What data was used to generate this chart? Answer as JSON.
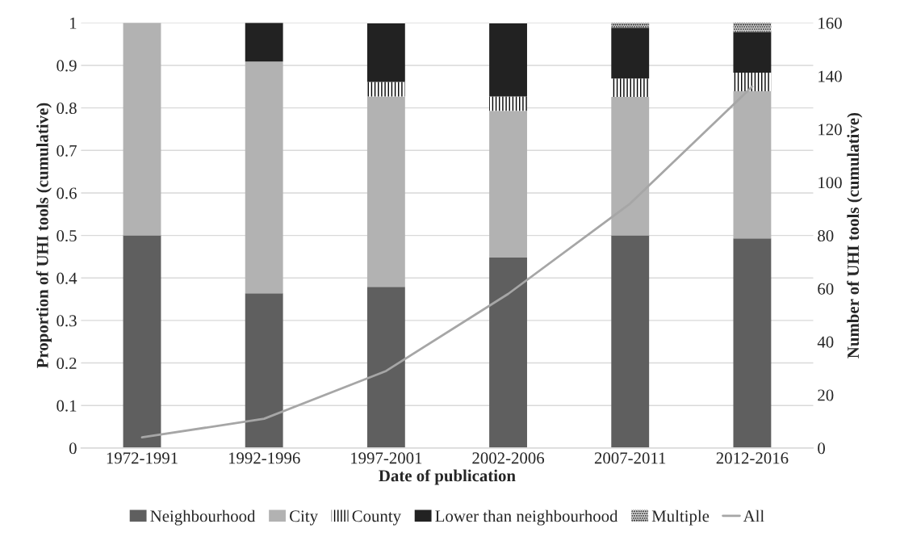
{
  "chart_data": {
    "type": "bar",
    "stacked": true,
    "categories": [
      "1972-1991",
      "1992-1996",
      "1997-2001",
      "2002-2006",
      "2007-2011",
      "2012-2016"
    ],
    "xlabel": "Date of publication",
    "ylabel": "Proportion of UHI tools (cumulative)",
    "y2label": "Number of UHI tools (cumulative)",
    "series": [
      {
        "name": "Neighbourhood",
        "color": "#5f5f5f",
        "values": [
          0.5,
          0.364,
          0.379,
          0.448,
          0.5,
          0.493
        ]
      },
      {
        "name": "City",
        "color": "#b2b2b2",
        "values": [
          0.5,
          0.545,
          0.448,
          0.345,
          0.326,
          0.346
        ]
      },
      {
        "name": "County",
        "color": "#ffffff",
        "values": [
          0,
          0,
          0.034,
          0.034,
          0.043,
          0.044
        ]
      },
      {
        "name": "Lower than neighbourhood",
        "color": "#222222",
        "values": [
          0,
          0.091,
          0.138,
          0.172,
          0.12,
          0.096
        ]
      },
      {
        "name": "Multiple",
        "color": "#d9d9d9",
        "values": [
          0,
          0,
          0,
          0,
          0.011,
          0.022
        ]
      },
      {
        "name": "All",
        "type": "line",
        "axis": "y2",
        "color": "#a6a6a6",
        "values": [
          4,
          11,
          29,
          58,
          92,
          136
        ]
      }
    ],
    "ylim": [
      0,
      1
    ],
    "yticks": [
      0,
      {
        "value": 0.1,
        "label": "0.1"
      },
      {
        "value": 0.2,
        "label": "0.2"
      },
      {
        "value": 0.3,
        "label": "0.3"
      },
      {
        "value": 0.4,
        "label": "0.4"
      },
      {
        "value": 0.5,
        "label": "0.5"
      },
      {
        "value": 0.6,
        "label": "0.6"
      },
      {
        "value": 0.7,
        "label": "0.7"
      },
      {
        "value": 0.8,
        "label": "0.8"
      },
      {
        "value": 0.9,
        "label": "0.9"
      },
      1
    ],
    "y2lim": [
      0,
      160
    ],
    "y2ticks": [
      0,
      20,
      40,
      60,
      80,
      100,
      120,
      140,
      160
    ],
    "grid": "y",
    "legend": "bottom",
    "marker": "none",
    "line_style": "solid"
  }
}
